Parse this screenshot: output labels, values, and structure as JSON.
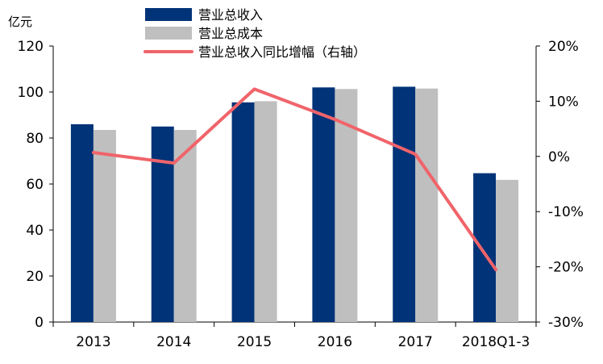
{
  "chart_data": {
    "type": "bar",
    "categories": [
      "2013",
      "2014",
      "2015",
      "2016",
      "2017",
      "2018Q1-3"
    ],
    "series": [
      {
        "name": "营业总收入",
        "kind": "bar",
        "axis": "left",
        "color": "#003378",
        "values": [
          86,
          85,
          95.5,
          102,
          102.3,
          64.7
        ]
      },
      {
        "name": "营业总成本",
        "kind": "bar",
        "axis": "left",
        "color": "#BFBFBF",
        "values": [
          83.5,
          83.5,
          96,
          101.3,
          101.5,
          61.8
        ]
      },
      {
        "name": "营业总收入同比增幅（右轴）",
        "kind": "line",
        "axis": "right",
        "color": "#F0646A",
        "values": [
          0.7,
          -1.2,
          12.2,
          6.7,
          0.4,
          -20.5
        ]
      }
    ],
    "left_axis": {
      "unit_label": "亿元",
      "ylim": [
        0,
        120
      ],
      "ticks": [
        0,
        20,
        40,
        60,
        80,
        100,
        120
      ],
      "tick_labels": [
        "0",
        "20",
        "40",
        "60",
        "80",
        "100",
        "120"
      ]
    },
    "right_axis": {
      "ylim": [
        -30,
        20
      ],
      "ticks": [
        -30,
        -20,
        -10,
        0,
        10,
        20
      ],
      "tick_labels": [
        "-30%",
        "-20%",
        "-10%",
        "0%",
        "10%",
        "20%"
      ]
    },
    "legend_position": "top-center",
    "grid": false
  }
}
